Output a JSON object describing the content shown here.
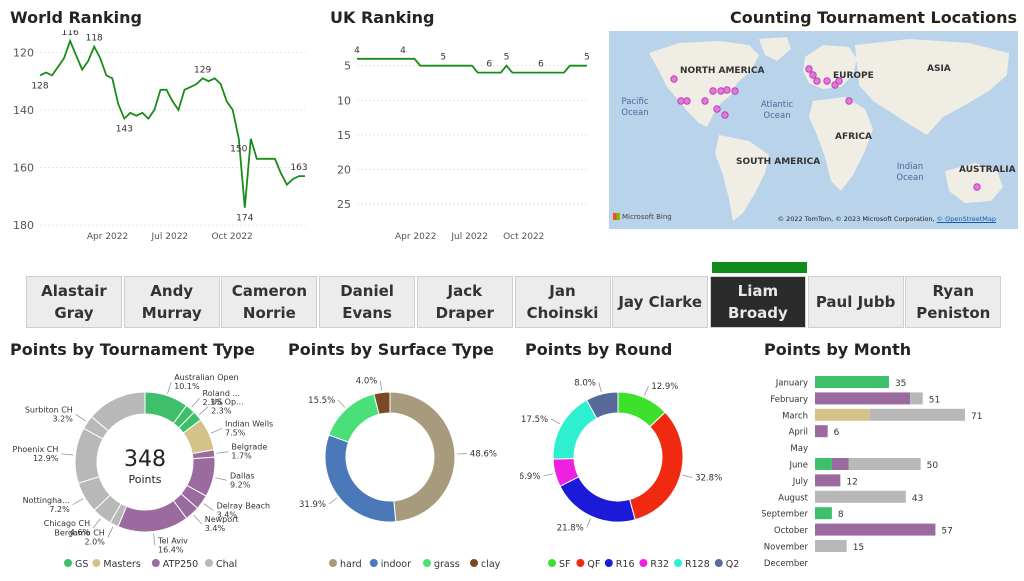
{
  "world_ranking": {
    "title": "World Ranking",
    "chart_data": {
      "type": "line",
      "y_reversed": true,
      "ylim": [
        115,
        180
      ],
      "y_ticks": [
        120,
        140,
        160,
        180
      ],
      "x_ticks": [
        "Apr 2022",
        "Jul 2022",
        "Oct 2022"
      ],
      "series_color": "#1a8c1a",
      "points": [
        128,
        127,
        128,
        125,
        122,
        116,
        121,
        126,
        123,
        118,
        122,
        128,
        129,
        138,
        143,
        141,
        142,
        141,
        143,
        140,
        133,
        133,
        137,
        140,
        133,
        132,
        131,
        129,
        130,
        129,
        131,
        137,
        140,
        150,
        174,
        150,
        157,
        157,
        157,
        157,
        162,
        166,
        164,
        163,
        163
      ],
      "data_labels": [
        {
          "index": 0,
          "label": "128"
        },
        {
          "index": 5,
          "label": "116"
        },
        {
          "index": 9,
          "label": "118"
        },
        {
          "index": 14,
          "label": "143"
        },
        {
          "index": 27,
          "label": "129"
        },
        {
          "index": 33,
          "label": "150"
        },
        {
          "index": 34,
          "label": "174"
        },
        {
          "index": 43,
          "label": "163"
        }
      ]
    }
  },
  "uk_ranking": {
    "title": "UK Ranking",
    "chart_data": {
      "type": "line",
      "y_reversed": true,
      "ylim": [
        1,
        28
      ],
      "y_ticks": [
        5,
        10,
        15,
        20,
        25
      ],
      "x_ticks": [
        "Apr 2022",
        "Jul 2022",
        "Oct 2022"
      ],
      "series_color": "#1a8c1a",
      "points": [
        4,
        4,
        4,
        4,
        4,
        4,
        4,
        4,
        4,
        4,
        4,
        5,
        5,
        5,
        5,
        5,
        5,
        5,
        5,
        5,
        5,
        6,
        6,
        6,
        6,
        6,
        5,
        6,
        6,
        6,
        6,
        6,
        6,
        6,
        6,
        6,
        6,
        5,
        5,
        5,
        5
      ],
      "data_labels": [
        {
          "index": 0,
          "label": "4"
        },
        {
          "index": 8,
          "label": "4"
        },
        {
          "index": 15,
          "label": "5"
        },
        {
          "index": 23,
          "label": "6"
        },
        {
          "index": 26,
          "label": "5"
        },
        {
          "index": 32,
          "label": "6"
        },
        {
          "index": 40,
          "label": "5"
        }
      ]
    }
  },
  "map": {
    "title": "Counting Tournament Locations",
    "continents": [
      "NORTH AMERICA",
      "EUROPE",
      "ASIA",
      "AFRICA",
      "SOUTH AMERICA",
      "AUSTRALIA"
    ],
    "oceans": {
      "pacific": "Pacific Ocean",
      "atlantic": "Atlantic Ocean",
      "indian": "Indian Ocean"
    },
    "brand": "Microsoft Bing",
    "attribution": "© 2022 TomTom, © 2023 Microsoft Corporation,",
    "attribution_link": "© OpenStreetMap"
  },
  "players": [
    {
      "line1": "Alastair",
      "line2": "Gray",
      "selected": false
    },
    {
      "line1": "Andy",
      "line2": "Murray",
      "selected": false
    },
    {
      "line1": "Cameron",
      "line2": "Norrie",
      "selected": false
    },
    {
      "line1": "Daniel",
      "line2": "Evans",
      "selected": false
    },
    {
      "line1": "Jack",
      "line2": "Draper",
      "selected": false
    },
    {
      "line1": "Jan",
      "line2": "Choinski",
      "selected": false
    },
    {
      "line1": "Jay Clarke",
      "line2": "",
      "selected": false
    },
    {
      "line1": "Liam",
      "line2": "Broady",
      "selected": true
    },
    {
      "line1": "Paul Jubb",
      "line2": "",
      "selected": false
    },
    {
      "line1": "Ryan",
      "line2": "Peniston",
      "selected": false
    }
  ],
  "tournament_type": {
    "title": "Points by Tournament Type",
    "center_value": "348",
    "center_label": "Points",
    "chart_data": {
      "type": "pie",
      "total": 348,
      "slices": [
        {
          "label": "Australian Open",
          "pct": "10.1%",
          "value": 10.1,
          "category": "GS"
        },
        {
          "label": "Roland ...",
          "pct": "2.3%",
          "value": 2.3,
          "category": "GS"
        },
        {
          "label": "US Op...",
          "pct": "2.3%",
          "value": 2.3,
          "category": "GS"
        },
        {
          "label": "Indian Wells",
          "pct": "7.5%",
          "value": 7.5,
          "category": "Masters"
        },
        {
          "label": "Belgrade",
          "pct": "1.7%",
          "value": 1.7,
          "category": "ATP250"
        },
        {
          "label": "Dallas",
          "pct": "9.2%",
          "value": 9.2,
          "category": "ATP250"
        },
        {
          "label": "Delray Beach",
          "pct": "3.4%",
          "value": 3.4,
          "category": "ATP250"
        },
        {
          "label": "Newport",
          "pct": "3.4%",
          "value": 3.4,
          "category": "ATP250"
        },
        {
          "label": "Tel Aviv",
          "pct": "16.4%",
          "value": 16.4,
          "category": "ATP250"
        },
        {
          "label": "Bergamo CH",
          "pct": "2.0%",
          "value": 2.0,
          "category": "Chal"
        },
        {
          "label": "Chicago CH",
          "pct": "4.6%",
          "value": 4.6,
          "category": "Chal"
        },
        {
          "label": "Nottingha...",
          "pct": "7.2%",
          "value": 7.2,
          "category": "Chal"
        },
        {
          "label": "Phoenix CH",
          "pct": "12.9%",
          "value": 12.9,
          "category": "Chal"
        },
        {
          "label": "Surbiton CH",
          "pct": "3.2%",
          "value": 3.2,
          "category": "Chal"
        },
        {
          "label": "",
          "pct": "",
          "value": 13.8,
          "category": "Chal"
        }
      ],
      "legend": [
        {
          "name": "GS",
          "color": "#3fbf6a"
        },
        {
          "name": "Masters",
          "color": "#d4c28a"
        },
        {
          "name": "ATP250",
          "color": "#9b6a9e"
        },
        {
          "name": "Chal",
          "color": "#b8b8b8"
        }
      ]
    }
  },
  "surface_type": {
    "title": "Points by Surface Type",
    "chart_data": {
      "type": "pie",
      "slices": [
        {
          "label": "hard",
          "pct": "48.6%",
          "value": 48.6,
          "color": "#a89a7c"
        },
        {
          "label": "indoor",
          "pct": "31.9%",
          "value": 31.9,
          "color": "#4a78b8"
        },
        {
          "label": "grass",
          "pct": "15.5%",
          "value": 15.5,
          "color": "#49e07a"
        },
        {
          "label": "clay",
          "pct": "4.0%",
          "value": 4.0,
          "color": "#7a4a26"
        }
      ]
    }
  },
  "round": {
    "title": "Points by Round",
    "chart_data": {
      "type": "pie",
      "slices": [
        {
          "label": "SF",
          "pct": "12.9%",
          "value": 12.9,
          "color": "#3de02a"
        },
        {
          "label": "QF",
          "pct": "32.8%",
          "value": 32.8,
          "color": "#f02a10"
        },
        {
          "label": "R16",
          "pct": "21.8%",
          "value": 21.8,
          "color": "#1a1ad8"
        },
        {
          "label": "R32",
          "pct": "6.9%",
          "value": 6.9,
          "color": "#f020e0"
        },
        {
          "label": "R128",
          "pct": "17.5%",
          "value": 17.5,
          "color": "#2ef0d0"
        },
        {
          "label": "Q2",
          "pct": "8.0%",
          "value": 8.0,
          "color": "#566b9a"
        }
      ]
    }
  },
  "month": {
    "title": "Points by Month",
    "chart_data": {
      "type": "bar",
      "orientation": "horizontal",
      "colors": {
        "GS": "#3fbf6a",
        "Masters": "#d4c28a",
        "ATP250": "#9b6a9e",
        "Chal": "#b8b8b8"
      },
      "categories": [
        "January",
        "February",
        "March",
        "April",
        "May",
        "June",
        "July",
        "August",
        "September",
        "October",
        "November",
        "December"
      ],
      "totals": [
        "35",
        "51",
        "71",
        "6",
        "",
        "50",
        "12",
        "43",
        "8",
        "57",
        "15",
        ""
      ],
      "max": 71,
      "stacks": [
        [
          {
            "c": "GS",
            "v": 35
          }
        ],
        [
          {
            "c": "ATP250",
            "v": 45
          },
          {
            "c": "Chal",
            "v": 6
          }
        ],
        [
          {
            "c": "Masters",
            "v": 26
          },
          {
            "c": "Chal",
            "v": 45
          }
        ],
        [
          {
            "c": "ATP250",
            "v": 6
          }
        ],
        [],
        [
          {
            "c": "GS",
            "v": 8
          },
          {
            "c": "ATP250",
            "v": 8
          },
          {
            "c": "Chal",
            "v": 34
          }
        ],
        [
          {
            "c": "ATP250",
            "v": 12
          }
        ],
        [
          {
            "c": "Chal",
            "v": 43
          }
        ],
        [
          {
            "c": "GS",
            "v": 8
          }
        ],
        [
          {
            "c": "ATP250",
            "v": 57
          }
        ],
        [
          {
            "c": "Chal",
            "v": 15
          }
        ],
        []
      ]
    }
  }
}
